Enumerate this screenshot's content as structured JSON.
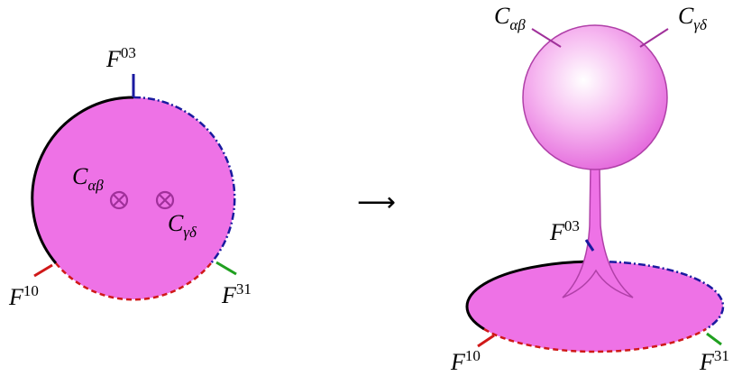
{
  "left": {
    "labels": [
      {
        "base": "F",
        "sup": "03"
      },
      {
        "base": "F",
        "sup": "10"
      },
      {
        "base": "F",
        "sup": "31"
      },
      {
        "base": "C",
        "sub": "αβ"
      },
      {
        "base": "C",
        "sub": "γδ"
      }
    ]
  },
  "arrow": "⟶",
  "right": {
    "labels": [
      {
        "base": "C",
        "sub": "αβ"
      },
      {
        "base": "C",
        "sub": "γδ"
      },
      {
        "base": "F",
        "sup": "03"
      },
      {
        "base": "F",
        "sup": "10"
      },
      {
        "base": "F",
        "sup": "31"
      }
    ]
  }
}
